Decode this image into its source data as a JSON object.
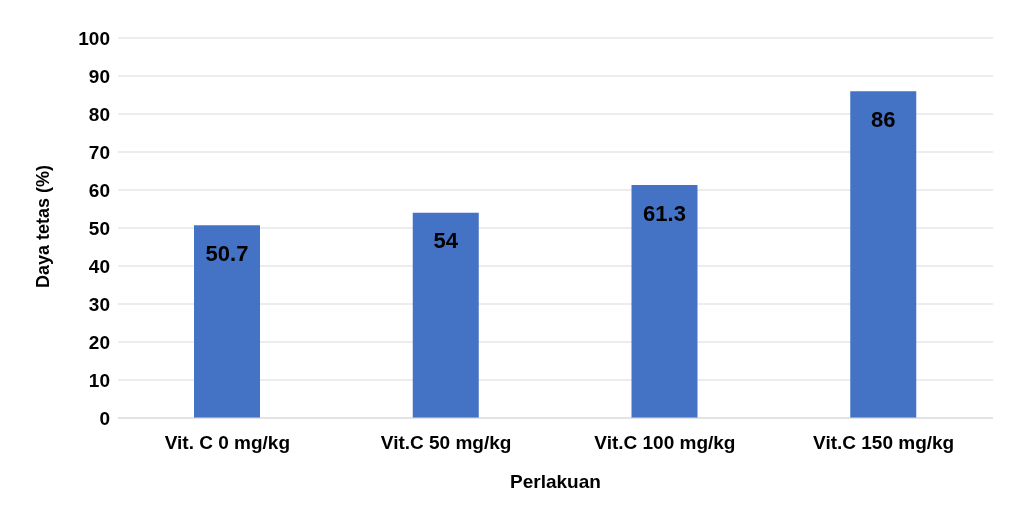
{
  "chart_data": {
    "type": "bar",
    "xlabel": "Perlakuan",
    "ylabel": "Daya tetas (%)",
    "categories": [
      "Vit. C 0 mg/kg",
      "Vit.C 50 mg/kg",
      "Vit.C 100 mg/kg",
      "Vit.C 150 mg/kg"
    ],
    "values": [
      50.7,
      54,
      61.3,
      86
    ],
    "color": "#4472c4",
    "ylim": [
      0,
      100
    ],
    "yticks": [
      0,
      10,
      20,
      30,
      40,
      50,
      60,
      70,
      80,
      90,
      100
    ],
    "grid": "y",
    "data_labels": true
  }
}
